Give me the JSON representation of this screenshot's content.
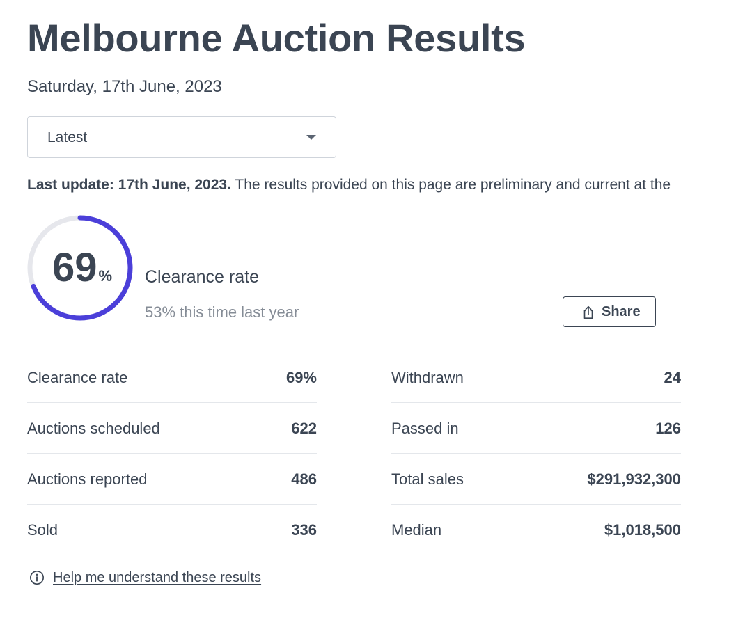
{
  "page": {
    "title": "Melbourne Auction Results",
    "date": "Saturday, 17th June, 2023"
  },
  "filter": {
    "selected": "Latest"
  },
  "update_notice": {
    "bold": "Last update: 17th June, 2023.",
    "text": " The results provided on this page are preliminary and current at the"
  },
  "clearance_gauge": {
    "value": 69,
    "value_text": "69",
    "unit": "%",
    "label": "Clearance rate",
    "comparison": "53% this time last year",
    "colors": {
      "track": "#e6e7ec",
      "fill": "#4b3fd9"
    }
  },
  "share_button": {
    "label": "Share",
    "icon": "share-icon"
  },
  "stats_left": [
    {
      "label": "Clearance rate",
      "value": "69%"
    },
    {
      "label": "Auctions scheduled",
      "value": "622"
    },
    {
      "label": "Auctions reported",
      "value": "486"
    },
    {
      "label": "Sold",
      "value": "336"
    }
  ],
  "stats_right": [
    {
      "label": "Withdrawn",
      "value": "24"
    },
    {
      "label": "Passed in",
      "value": "126"
    },
    {
      "label": "Total sales",
      "value": "$291,932,300"
    },
    {
      "label": "Median",
      "value": "$1,018,500"
    }
  ],
  "help_link": {
    "label": "Help me understand these results",
    "icon": "info-icon"
  }
}
